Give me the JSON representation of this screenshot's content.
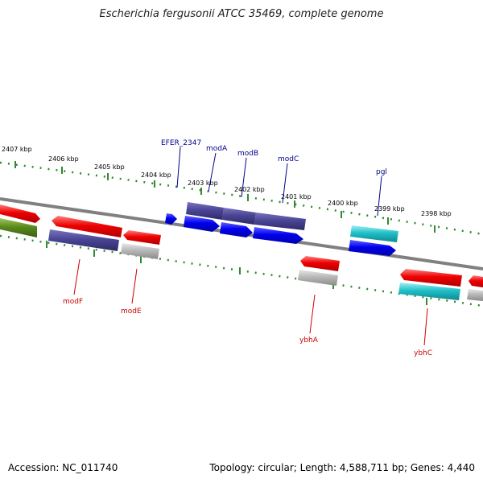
{
  "title": "Escherichia fergusonii ATCC 35469, complete genome",
  "footer": {
    "accession": "Accession: NC_011740",
    "topology": "Topology: circular; Length: 4,588,711 bp; Genes: 4,440"
  },
  "ticks": [
    "2407 kbp",
    "2406 kbp",
    "2405 kbp",
    "2404 kbp",
    "2403 kbp",
    "2402 kbp",
    "2401 kbp",
    "2400 kbp",
    "2399 kbp",
    "2398 kbp"
  ],
  "gene_labels_top": [
    "EFER_2347",
    "modA",
    "modB",
    "modC",
    "pgl"
  ],
  "gene_labels_bottom": [
    "modF",
    "modE",
    "ybhA",
    "ybhC"
  ],
  "colors": {
    "top_label": "#00008b",
    "bottom_label": "#cc0000",
    "tick": "#2e8b2e",
    "backbone": "#808080",
    "red": "#ee0000",
    "slate": "#4b4596",
    "blue": "#0000ee",
    "cyan": "#20c0c8",
    "grey": "#b8b8b8",
    "olive": "#5a8a1e"
  }
}
